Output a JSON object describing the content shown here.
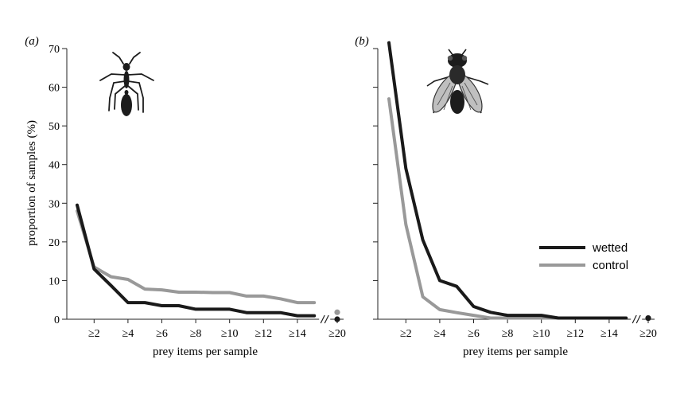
{
  "chart_data": [
    {
      "type": "line",
      "panel_label": "(a)",
      "icon": "ant-icon",
      "ylabel": "proportion of samples (%)",
      "xlabel": "prey items per sample",
      "ylim": [
        0,
        70
      ],
      "yticks": [
        0,
        10,
        20,
        30,
        40,
        50,
        60,
        70
      ],
      "x": [
        1,
        2,
        3,
        4,
        5,
        6,
        7,
        8,
        9,
        10,
        11,
        12,
        13,
        14,
        15
      ],
      "xtick_values": [
        2,
        4,
        6,
        8,
        10,
        12,
        14
      ],
      "xtick_labels": [
        "≥2",
        "≥4",
        "≥6",
        "≥8",
        "≥10",
        "≥12",
        "≥14"
      ],
      "break_label": "≥20",
      "series": [
        {
          "name": "wetted",
          "color": "#1a1a1a",
          "values": [
            29.5,
            13,
            8.7,
            4.3,
            4.3,
            3.5,
            3.5,
            2.6,
            2.6,
            2.6,
            1.7,
            1.7,
            1.7,
            0.9,
            0.9
          ],
          "break_value": 0
        },
        {
          "name": "control",
          "color": "#999999",
          "values": [
            28,
            13.5,
            11,
            10.3,
            7.8,
            7.6,
            7,
            7,
            6.9,
            6.9,
            6,
            6,
            5.3,
            4.3,
            4.3
          ],
          "break_value": 1.8
        }
      ]
    },
    {
      "type": "line",
      "panel_label": "(b)",
      "icon": "fly-icon",
      "xlabel": "prey items per sample",
      "ylim": [
        0,
        70
      ],
      "x": [
        1,
        2,
        3,
        4,
        5,
        6,
        7,
        8,
        9,
        10,
        11,
        12,
        13,
        14,
        15
      ],
      "xtick_values": [
        2,
        4,
        6,
        8,
        10,
        12,
        14
      ],
      "xtick_labels": [
        "≥2",
        "≥4",
        "≥6",
        "≥8",
        "≥10",
        "≥12",
        "≥14"
      ],
      "break_label": "≥20",
      "legend": {
        "position": "right"
      },
      "series": [
        {
          "name": "wetted",
          "color": "#1a1a1a",
          "values": [
            71.5,
            39,
            20.5,
            10,
            8.5,
            3.3,
            1.8,
            1,
            1,
            1,
            0.3,
            0.3,
            0.3,
            0.3,
            0.3
          ],
          "break_value": 0.3
        },
        {
          "name": "control",
          "color": "#999999",
          "values": [
            57,
            24.5,
            5.8,
            2.5,
            1.7,
            1,
            0.3,
            0.3,
            0.3,
            0.3,
            0.3,
            0.3,
            0.3,
            0.3,
            0.3
          ],
          "break_value": 0.3
        }
      ]
    }
  ]
}
